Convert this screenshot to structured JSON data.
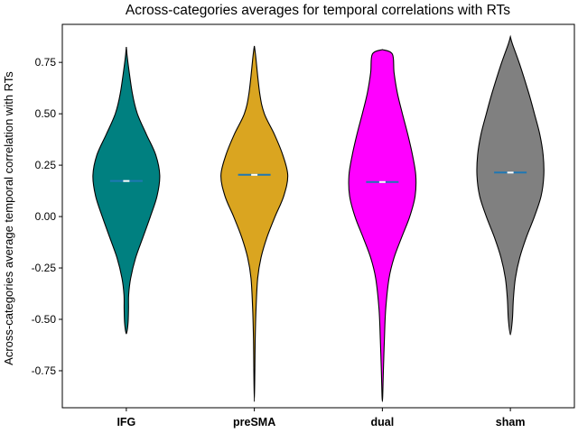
{
  "chart_data": {
    "type": "violin",
    "title": "Across-categories averages for temporal correlations with RTs",
    "xlabel": "",
    "ylabel": "Across-categories average temporal correlation with RTs",
    "ylim": [
      -0.93,
      0.935
    ],
    "yticks": [
      "0.75",
      "0.50",
      "0.25",
      "0.00",
      "-0.25",
      "-0.50",
      "-0.75"
    ],
    "grid": false,
    "legend": "none",
    "categories": [
      "IFG",
      "preSMA",
      "dual",
      "sham"
    ],
    "violins": [
      {
        "category": "IFG",
        "color": "#008080",
        "median": 0.173,
        "mean": 0.173,
        "min": -0.57,
        "max": 0.825,
        "profile": [
          [
            0.825,
            0.0
          ],
          [
            0.76,
            0.04
          ],
          [
            0.6,
            0.18
          ],
          [
            0.5,
            0.33
          ],
          [
            0.4,
            0.6
          ],
          [
            0.3,
            0.88
          ],
          [
            0.2,
            1.0
          ],
          [
            0.1,
            0.92
          ],
          [
            0.0,
            0.72
          ],
          [
            -0.1,
            0.5
          ],
          [
            -0.2,
            0.28
          ],
          [
            -0.3,
            0.13
          ],
          [
            -0.38,
            0.07
          ],
          [
            -0.45,
            0.065
          ],
          [
            -0.52,
            0.05
          ],
          [
            -0.57,
            0.0
          ]
        ]
      },
      {
        "category": "preSMA",
        "color": "#DAA520",
        "median": 0.203,
        "mean": 0.203,
        "min": -0.9,
        "max": 0.83,
        "profile": [
          [
            0.83,
            0.0
          ],
          [
            0.78,
            0.04
          ],
          [
            0.6,
            0.16
          ],
          [
            0.5,
            0.3
          ],
          [
            0.4,
            0.6
          ],
          [
            0.3,
            0.85
          ],
          [
            0.2,
            1.0
          ],
          [
            0.1,
            0.88
          ],
          [
            0.0,
            0.62
          ],
          [
            -0.1,
            0.38
          ],
          [
            -0.2,
            0.2
          ],
          [
            -0.3,
            0.1
          ],
          [
            -0.45,
            0.05
          ],
          [
            -0.6,
            0.025
          ],
          [
            -0.75,
            0.015
          ],
          [
            -0.9,
            0.0
          ]
        ]
      },
      {
        "category": "dual",
        "color": "#FF00FF",
        "median": 0.168,
        "mean": 0.168,
        "min": -0.9,
        "max": 0.812,
        "profile": [
          [
            0.812,
            0.0
          ],
          [
            0.79,
            0.3
          ],
          [
            0.7,
            0.35
          ],
          [
            0.6,
            0.45
          ],
          [
            0.5,
            0.6
          ],
          [
            0.4,
            0.76
          ],
          [
            0.3,
            0.9
          ],
          [
            0.2,
            1.0
          ],
          [
            0.1,
            0.98
          ],
          [
            0.0,
            0.82
          ],
          [
            -0.1,
            0.58
          ],
          [
            -0.2,
            0.35
          ],
          [
            -0.3,
            0.2
          ],
          [
            -0.45,
            0.1
          ],
          [
            -0.6,
            0.06
          ],
          [
            -0.75,
            0.03
          ],
          [
            -0.9,
            0.0
          ]
        ]
      },
      {
        "category": "sham",
        "color": "#808080",
        "median": 0.214,
        "mean": 0.214,
        "min": -0.575,
        "max": 0.875,
        "profile": [
          [
            0.875,
            0.0
          ],
          [
            0.84,
            0.06
          ],
          [
            0.74,
            0.28
          ],
          [
            0.6,
            0.55
          ],
          [
            0.5,
            0.72
          ],
          [
            0.4,
            0.88
          ],
          [
            0.3,
            0.98
          ],
          [
            0.2,
            1.0
          ],
          [
            0.1,
            0.92
          ],
          [
            0.0,
            0.72
          ],
          [
            -0.1,
            0.48
          ],
          [
            -0.2,
            0.28
          ],
          [
            -0.3,
            0.15
          ],
          [
            -0.4,
            0.09
          ],
          [
            -0.5,
            0.06
          ],
          [
            -0.575,
            0.0
          ]
        ]
      }
    ]
  }
}
